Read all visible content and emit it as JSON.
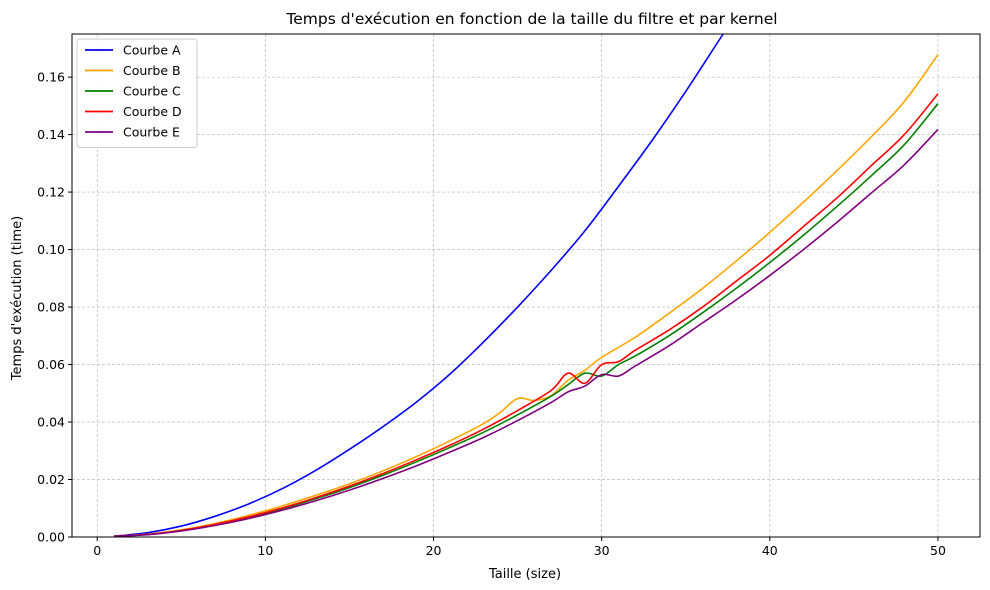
{
  "chart_data": {
    "type": "line",
    "title": "Temps d'exécution en fonction de la taille du filtre et par kernel",
    "xlabel": "Taille (size)",
    "ylabel": "Temps d'exécution (time)",
    "xlim": [
      -1.5,
      52.5
    ],
    "ylim": [
      0,
      0.175
    ],
    "xticks": [
      0,
      10,
      20,
      30,
      40,
      50
    ],
    "yticks": [
      0.0,
      0.02,
      0.04,
      0.06,
      0.08,
      0.1,
      0.12,
      0.14,
      0.16
    ],
    "ytick_labels": [
      "0.00",
      "0.02",
      "0.04",
      "0.06",
      "0.08",
      "0.10",
      "0.12",
      "0.14",
      "0.16"
    ],
    "grid": true,
    "legend_position": "upper-left",
    "series": [
      {
        "name": "Courbe A",
        "color": "#0000ff",
        "x": [
          1,
          3,
          5,
          7,
          9,
          11,
          13,
          15,
          17,
          19,
          21,
          23,
          25,
          27,
          29,
          31,
          33,
          35,
          37,
          37.5
        ],
        "y": [
          0.0003,
          0.0015,
          0.0038,
          0.0072,
          0.0115,
          0.0168,
          0.0232,
          0.0305,
          0.0384,
          0.047,
          0.0568,
          0.068,
          0.08,
          0.0928,
          0.1065,
          0.122,
          0.138,
          0.155,
          0.173,
          0.1775
        ]
      },
      {
        "name": "Courbe B",
        "color": "#ffa500",
        "x": [
          1,
          3,
          5,
          7,
          9,
          11,
          13,
          15,
          17,
          19,
          21,
          23,
          24,
          25,
          26,
          27,
          28,
          29,
          30,
          32,
          34,
          36,
          38,
          40,
          42,
          44,
          46,
          48,
          50
        ],
        "y": [
          0.0003,
          0.001,
          0.0025,
          0.0047,
          0.0075,
          0.0108,
          0.0145,
          0.0185,
          0.023,
          0.028,
          0.0335,
          0.0395,
          0.0435,
          0.0482,
          0.0475,
          0.0492,
          0.0545,
          0.058,
          0.0625,
          0.0695,
          0.0778,
          0.0865,
          0.096,
          0.106,
          0.1165,
          0.1275,
          0.139,
          0.1515,
          0.1678
        ]
      },
      {
        "name": "Courbe C",
        "color": "#008000",
        "x": [
          1,
          3,
          5,
          7,
          9,
          11,
          13,
          15,
          17,
          19,
          21,
          23,
          25,
          27,
          28,
          29,
          30,
          31,
          32,
          34,
          36,
          38,
          40,
          42,
          44,
          46,
          48,
          50
        ],
        "y": [
          0.0003,
          0.0009,
          0.0022,
          0.0042,
          0.0068,
          0.0098,
          0.0133,
          0.0172,
          0.0215,
          0.0262,
          0.0312,
          0.0365,
          0.0425,
          0.049,
          0.053,
          0.057,
          0.056,
          0.06,
          0.063,
          0.07,
          0.078,
          0.0865,
          0.0955,
          0.105,
          0.115,
          0.1255,
          0.1365,
          0.1508
        ]
      },
      {
        "name": "Courbe D",
        "color": "#ff0000",
        "x": [
          1,
          3,
          5,
          7,
          9,
          11,
          13,
          15,
          17,
          19,
          21,
          23,
          25,
          27,
          28,
          29,
          30,
          31,
          32,
          34,
          36,
          38,
          40,
          42,
          44,
          46,
          48,
          50
        ],
        "y": [
          0.0003,
          0.0009,
          0.0023,
          0.0044,
          0.007,
          0.0101,
          0.0137,
          0.0177,
          0.0221,
          0.0269,
          0.032,
          0.0376,
          0.044,
          0.051,
          0.057,
          0.0535,
          0.06,
          0.061,
          0.065,
          0.072,
          0.08,
          0.089,
          0.098,
          0.108,
          0.118,
          0.129,
          0.14,
          0.1542
        ]
      },
      {
        "name": "Courbe E",
        "color": "#800080",
        "x": [
          1,
          3,
          5,
          7,
          9,
          11,
          13,
          15,
          17,
          19,
          21,
          23,
          25,
          27,
          28,
          29,
          30,
          31,
          32,
          34,
          36,
          38,
          40,
          42,
          44,
          46,
          48,
          50
        ],
        "y": [
          0.0003,
          0.0008,
          0.0021,
          0.004,
          0.0064,
          0.0093,
          0.0126,
          0.0163,
          0.0204,
          0.0248,
          0.0296,
          0.0347,
          0.0405,
          0.0468,
          0.0505,
          0.0525,
          0.0565,
          0.056,
          0.0595,
          0.0665,
          0.0745,
          0.0825,
          0.091,
          0.1,
          0.1095,
          0.1195,
          0.1295,
          0.1418
        ]
      }
    ]
  }
}
